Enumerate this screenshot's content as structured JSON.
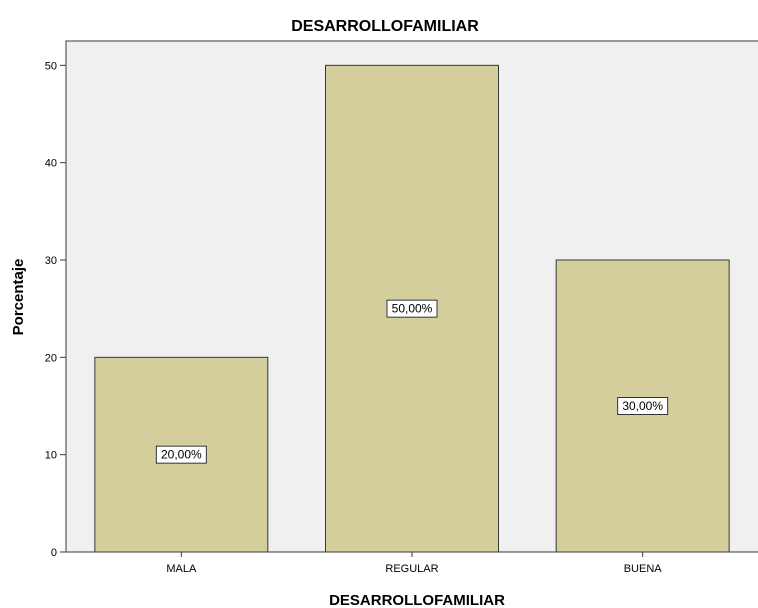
{
  "chart_data": {
    "type": "bar",
    "title": "DESARROLLOFAMILIAR",
    "xlabel": "DESARROLLOFAMILIAR",
    "ylabel": "Porcentaje",
    "categories": [
      "MALA",
      "REGULAR",
      "BUENA"
    ],
    "values": [
      20,
      50,
      30
    ],
    "data_labels": [
      "20,00%",
      "50,00%",
      "30,00%"
    ],
    "ylim": [
      0,
      52.5
    ],
    "yticks": [
      0,
      10,
      20,
      30,
      40,
      50
    ],
    "grid": false,
    "legend": "none",
    "colors": {
      "bar_fill": "#d3ce9b",
      "bar_stroke": "#3a3a3a",
      "plot_background": "#f0f0f0",
      "plot_border": "#3a3a3a",
      "label_box_fill": "#ffffff",
      "label_box_stroke": "#333333"
    }
  }
}
